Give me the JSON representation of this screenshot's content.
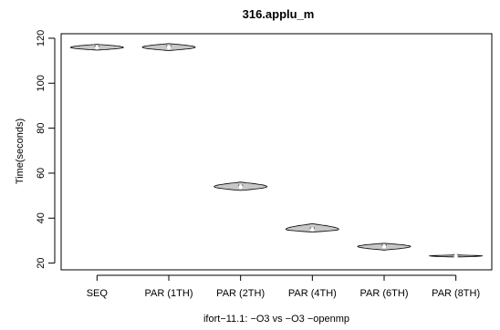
{
  "chart_data": {
    "type": "violin",
    "title": "316.applu_m",
    "xlabel": "ifort−11.1: −O3 vs −O3 −openmp",
    "ylabel": "Time(seconds)",
    "ylim": [
      17,
      122
    ],
    "yticks": [
      20,
      40,
      60,
      80,
      100,
      120
    ],
    "box": true,
    "categories": [
      "SEQ",
      "PAR (1TH)",
      "PAR (2TH)",
      "PAR (4TH)",
      "PAR (6TH)",
      "PAR (8TH)"
    ],
    "distributions": [
      {
        "name": "SEQ",
        "min": 114.7,
        "max": 117.3,
        "median": 115.9
      },
      {
        "name": "PAR (1TH)",
        "min": 114.5,
        "max": 117.6,
        "median": 116.0
      },
      {
        "name": "PAR (2TH)",
        "min": 52.3,
        "max": 56.0,
        "median": 54.0
      },
      {
        "name": "PAR (4TH)",
        "min": 33.8,
        "max": 37.5,
        "median": 35.0
      },
      {
        "name": "PAR (6TH)",
        "min": 25.8,
        "max": 28.8,
        "median": 27.4
      },
      {
        "name": "PAR (8TH)",
        "min": 22.7,
        "max": 23.6,
        "median": 23.2
      }
    ],
    "colors": {
      "fill": "#c8c8c8",
      "stroke": "#000000",
      "median": "#ffffff"
    }
  }
}
